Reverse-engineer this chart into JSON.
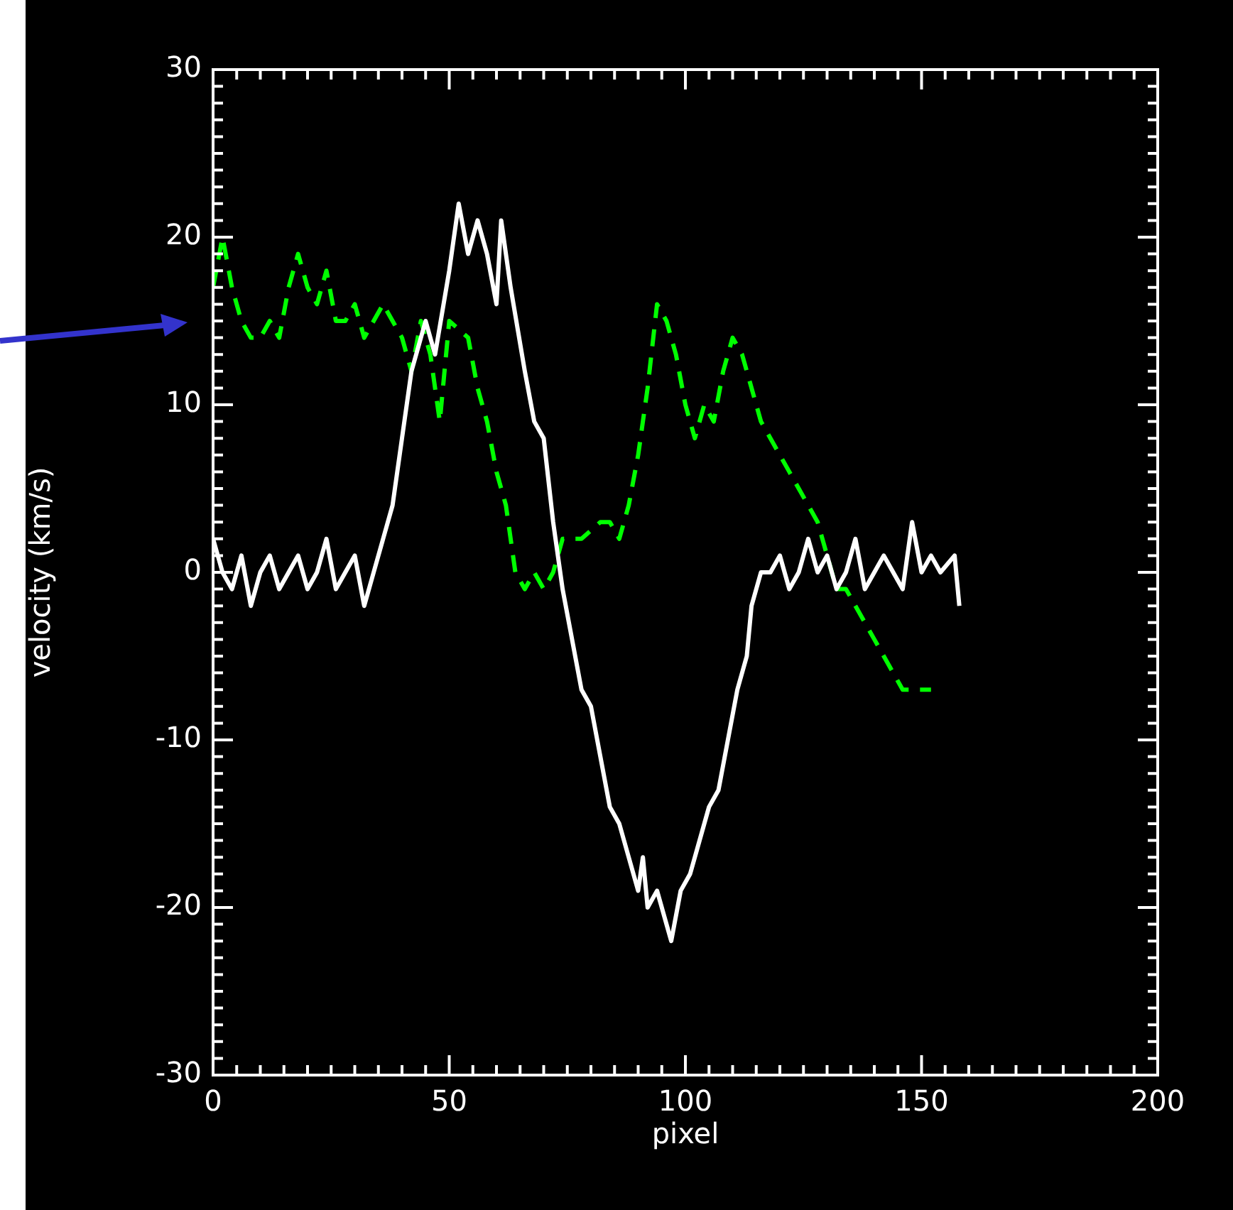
{
  "chart_data": {
    "type": "line",
    "xlabel": "pixel",
    "ylabel": "velocity (km/s)",
    "xlim": [
      0,
      200
    ],
    "ylim": [
      -30,
      30
    ],
    "xticks": [
      0,
      50,
      100,
      150,
      200
    ],
    "yticks": [
      -30,
      -20,
      -10,
      0,
      10,
      20,
      30
    ],
    "grid": false,
    "legend": false,
    "marker": "none",
    "series": [
      {
        "color": "#ffffff",
        "line_style": "solid",
        "x": [
          0,
          2,
          4,
          6,
          8,
          10,
          12,
          14,
          16,
          18,
          20,
          22,
          24,
          26,
          28,
          30,
          32,
          34,
          36,
          38,
          40,
          42,
          45,
          47,
          50,
          52,
          54,
          56,
          58,
          60,
          61,
          63,
          66,
          68,
          70,
          72,
          74,
          76,
          78,
          80,
          82,
          84,
          86,
          88,
          90,
          91,
          92,
          94,
          96,
          97,
          99,
          101,
          103,
          105,
          107,
          109,
          111,
          113,
          114,
          116,
          118,
          120,
          122,
          124,
          126,
          128,
          130,
          132,
          134,
          136,
          138,
          140,
          142,
          144,
          146,
          148,
          150,
          152,
          154,
          157,
          158
        ],
        "values": [
          2,
          0,
          -1,
          1,
          -2,
          0,
          1,
          -1,
          0,
          1,
          -1,
          0,
          2,
          -1,
          0,
          1,
          -2,
          0,
          2,
          4,
          8,
          12,
          15,
          13,
          18,
          22,
          19,
          21,
          19,
          16,
          21,
          17,
          12,
          9,
          8,
          3,
          -1,
          -4,
          -7,
          -8,
          -11,
          -14,
          -15,
          -17,
          -19,
          -17,
          -20,
          -19,
          -21,
          -22,
          -19,
          -18,
          -16,
          -14,
          -13,
          -10,
          -7,
          -5,
          -2,
          0,
          0,
          1,
          -1,
          0,
          2,
          0,
          1,
          -1,
          0,
          2,
          -1,
          0,
          1,
          0,
          -1,
          3,
          0,
          1,
          0,
          1,
          -2
        ]
      },
      {
        "color": "#00ff00",
        "line_style": "dashed",
        "x": [
          0,
          2,
          4,
          6,
          8,
          10,
          12,
          14,
          16,
          18,
          20,
          22,
          24,
          26,
          28,
          30,
          32,
          34,
          36,
          38,
          40,
          42,
          44,
          46,
          48,
          50,
          54,
          56,
          58,
          60,
          62,
          64,
          66,
          68,
          70,
          72,
          74,
          76,
          78,
          82,
          84,
          86,
          88,
          90,
          92,
          94,
          96,
          98,
          100,
          102,
          104,
          106,
          108,
          110,
          112,
          114,
          116,
          118,
          120,
          122,
          124,
          126,
          128,
          130,
          132,
          134,
          136,
          138,
          140,
          142,
          144,
          146,
          148,
          150,
          152
        ],
        "values": [
          17,
          20,
          17,
          15,
          14,
          14,
          15,
          14,
          17,
          19,
          17,
          16,
          18,
          15,
          15,
          16,
          14,
          15,
          16,
          15,
          14,
          12,
          15,
          13,
          9,
          15,
          14,
          11,
          9,
          6,
          4,
          0,
          -1,
          0,
          -1,
          0,
          2,
          2,
          2,
          3,
          3,
          2,
          4,
          7,
          11,
          16,
          15,
          13,
          10,
          8,
          10,
          9,
          12,
          14,
          13,
          11,
          9,
          8,
          7,
          6,
          5,
          4,
          3,
          1,
          -1,
          -1,
          -2,
          -3,
          -4,
          -5,
          -6,
          -7,
          -7,
          -7,
          -7
        ]
      }
    ]
  }
}
